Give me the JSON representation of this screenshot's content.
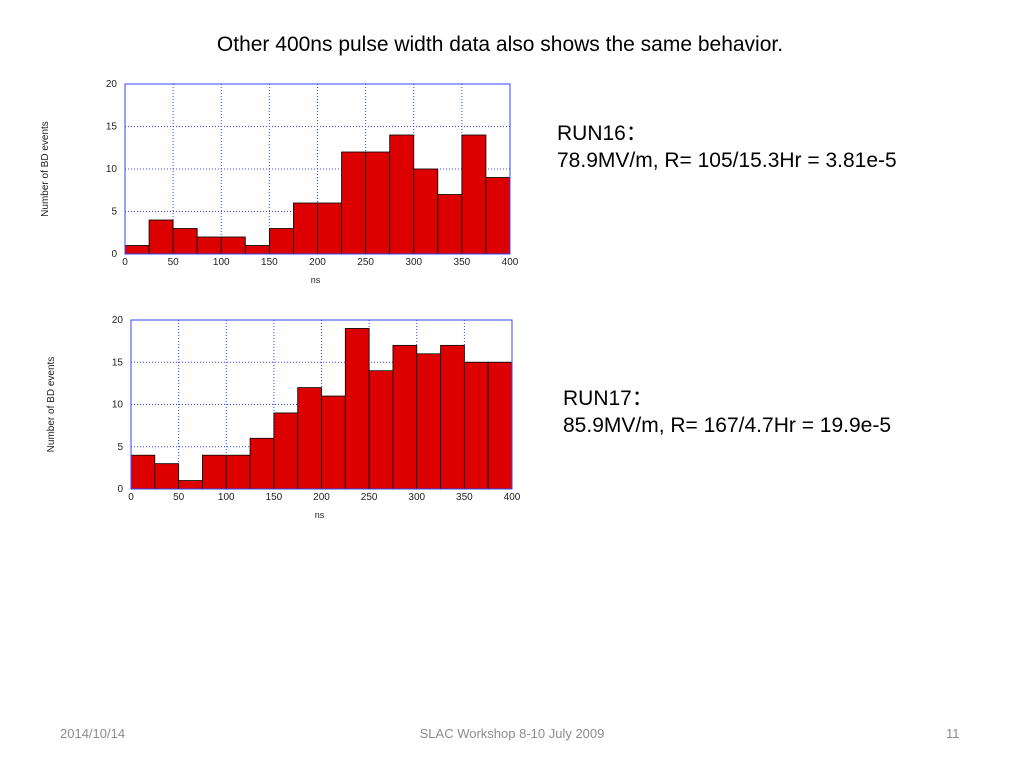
{
  "slide": {
    "title": "Other 400ns pulse width data also shows the same behavior.",
    "footer_date": "2014/10/14",
    "footer_center": "SLAC Workshop 8-10 July 2009",
    "page_number": "11"
  },
  "run16_text": {
    "line1": "RUN16：",
    "line2": "78.9MV/m,  R= 105/15.3Hr = 3.81e-5"
  },
  "run17_text": {
    "line1": "RUN17：",
    "line2": "85.9MV/m,  R= 167/4.7Hr = 19.9e-5"
  },
  "colors": {
    "bar_fill": "#dd0000",
    "bar_stroke": "#000000",
    "grid": "#3344ff"
  },
  "chart_data": [
    {
      "type": "bar",
      "xlabel": "ns",
      "ylabel": "Number of BD events",
      "xlim": [
        0,
        400
      ],
      "ylim": [
        0,
        20
      ],
      "xticks": [
        0,
        50,
        100,
        150,
        200,
        250,
        300,
        350,
        400
      ],
      "yticks": [
        0,
        5,
        10,
        15,
        20
      ],
      "bin_width": 25,
      "bin_starts": [
        0,
        25,
        50,
        75,
        100,
        125,
        150,
        175,
        200,
        225,
        250,
        275,
        300,
        325,
        350,
        375
      ],
      "values": [
        1,
        4,
        3,
        2,
        2,
        1,
        3,
        6,
        6,
        12,
        12,
        14,
        10,
        7,
        14,
        9
      ],
      "grid": true
    },
    {
      "type": "bar",
      "xlabel": "ns",
      "ylabel": "Number of BD events",
      "xlim": [
        0,
        400
      ],
      "ylim": [
        0,
        20
      ],
      "xticks": [
        0,
        50,
        100,
        150,
        200,
        250,
        300,
        350,
        400
      ],
      "yticks": [
        0,
        5,
        10,
        15,
        20
      ],
      "bin_width": 25,
      "bin_starts": [
        0,
        25,
        50,
        75,
        100,
        125,
        150,
        175,
        200,
        225,
        250,
        275,
        300,
        325,
        350,
        375
      ],
      "values": [
        4,
        3,
        1,
        4,
        4,
        6,
        9,
        12,
        11,
        19,
        14,
        17,
        16,
        17,
        15,
        15
      ],
      "grid": true
    }
  ]
}
